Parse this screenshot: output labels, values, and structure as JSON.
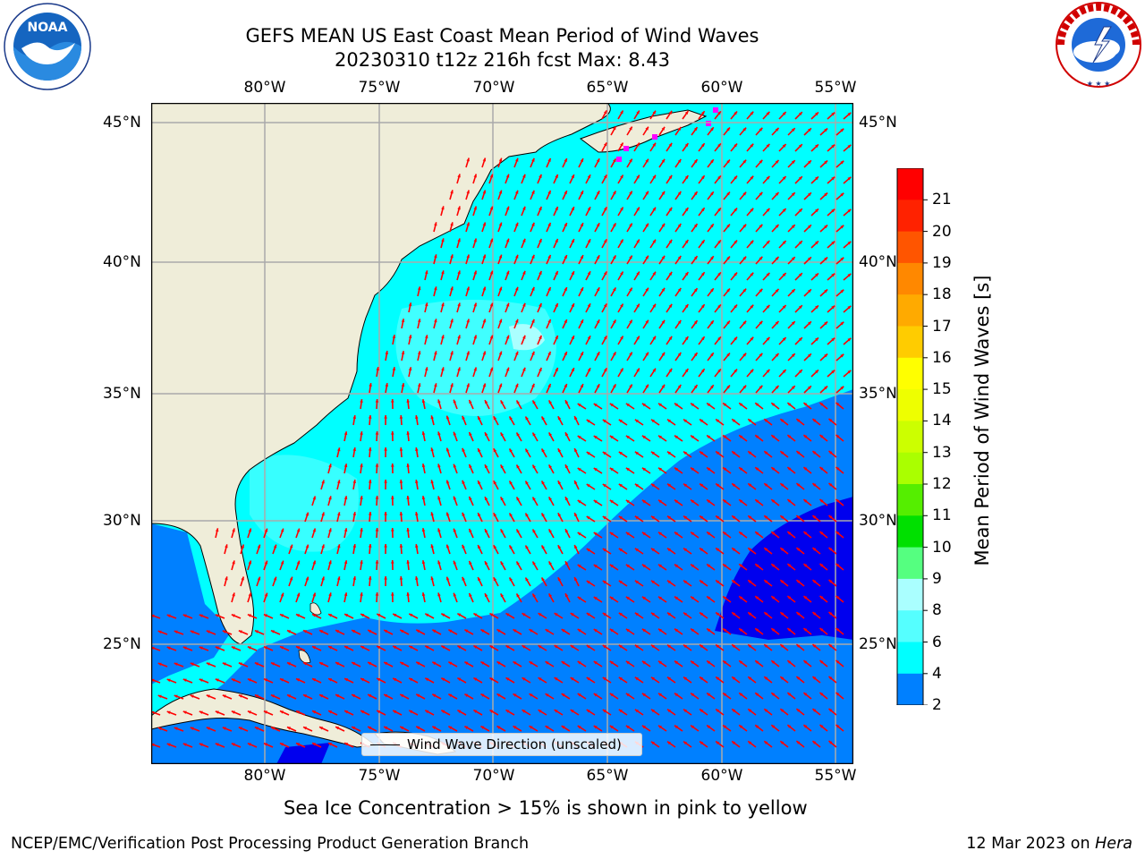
{
  "title": {
    "line1": "GEFS MEAN US East Coast Mean Period of Wind Waves",
    "line2": "20230310 t12z 216h fcst   Max: 8.43"
  },
  "logos": {
    "left": {
      "text": "NOAA",
      "ring_text": "NATIONAL OCEANIC AND ATMOSPHERIC ADMINISTRATION · U.S. DEPARTMENT OF COMMERCE"
    },
    "right": {
      "ring_text": "NATIONAL WEATHER SERVICE"
    }
  },
  "map": {
    "lon_ticks": [
      "80°W",
      "75°W",
      "70°W",
      "65°W",
      "60°W",
      "55°W"
    ],
    "lat_ticks": [
      "45°N",
      "40°N",
      "35°N",
      "30°N",
      "25°N"
    ],
    "extent": {
      "lon_min": -85,
      "lon_max": -54.2,
      "lat_min": 20.5,
      "lat_max": 45.8
    },
    "grid": true,
    "colors": {
      "land": "#efedd9",
      "ocean_light": "#00ffff",
      "ocean_paler": "#55ffff",
      "ocean_blue": "#0080ff",
      "ocean_dark": "#0000ee",
      "arrow": "#ff0000",
      "ice": "#ff00ff"
    }
  },
  "legend": {
    "label": "Wind Wave Direction (unscaled)"
  },
  "colorbar": {
    "label": "Mean Period of Wind Waves [s]",
    "ticks": [
      "21",
      "20",
      "19",
      "18",
      "17",
      "16",
      "15",
      "14",
      "13",
      "12",
      "11",
      "10",
      "9",
      "8",
      "6",
      "4",
      "2"
    ],
    "bins": [
      {
        "from": 2,
        "to": 4,
        "color": "#0080ff"
      },
      {
        "from": 4,
        "to": 6,
        "color": "#00ffff"
      },
      {
        "from": 6,
        "to": 8,
        "color": "#55ffff"
      },
      {
        "from": 8,
        "to": 9,
        "color": "#aaffff"
      },
      {
        "from": 9,
        "to": 10,
        "color": "#55ff80"
      },
      {
        "from": 10,
        "to": 11,
        "color": "#00e000"
      },
      {
        "from": 11,
        "to": 12,
        "color": "#55ee00"
      },
      {
        "from": 12,
        "to": 13,
        "color": "#aaff00"
      },
      {
        "from": 13,
        "to": 14,
        "color": "#ccff00"
      },
      {
        "from": 14,
        "to": 15,
        "color": "#eeff00"
      },
      {
        "from": 15,
        "to": 16,
        "color": "#ffff00"
      },
      {
        "from": 16,
        "to": 17,
        "color": "#ffcc00"
      },
      {
        "from": 17,
        "to": 18,
        "color": "#ffaa00"
      },
      {
        "from": 18,
        "to": 19,
        "color": "#ff8800"
      },
      {
        "from": 19,
        "to": 20,
        "color": "#ff5500"
      },
      {
        "from": 20,
        "to": 21,
        "color": "#ff2200"
      },
      {
        "from": 21,
        "to": 22,
        "color": "#ff0000"
      }
    ],
    "under_color": "#0000ff"
  },
  "notes": {
    "ice": "Sea Ice Concentration > 15% is shown in pink to yellow",
    "left": "NCEP/EMC/Verification Post Processing Product Generation Branch",
    "date": "12 Mar 2023 on ",
    "machine": "Hera"
  }
}
